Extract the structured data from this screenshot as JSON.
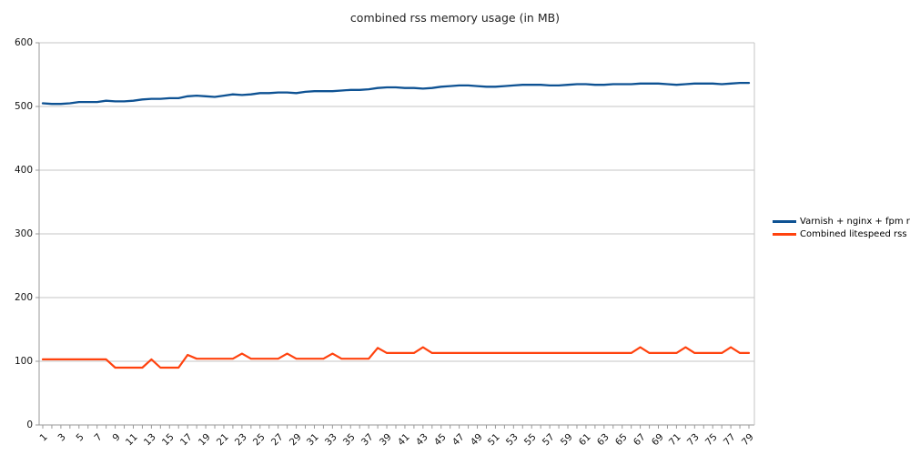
{
  "chart_data": {
    "type": "line",
    "title": "combined rss memory usage (in MB)",
    "xlabel": "",
    "ylabel": "",
    "ylim": [
      0,
      600
    ],
    "y_ticks": [
      0,
      100,
      200,
      300,
      400,
      500,
      600
    ],
    "x_label_every": 2,
    "grid": "horizontal-only",
    "legend_position": "right",
    "x": [
      1,
      2,
      3,
      4,
      5,
      6,
      7,
      8,
      9,
      10,
      11,
      12,
      13,
      14,
      15,
      16,
      17,
      18,
      19,
      20,
      21,
      22,
      23,
      24,
      25,
      26,
      27,
      28,
      29,
      30,
      31,
      32,
      33,
      34,
      35,
      36,
      37,
      38,
      39,
      40,
      41,
      42,
      43,
      44,
      45,
      46,
      47,
      48,
      49,
      50,
      51,
      52,
      53,
      54,
      55,
      56,
      57,
      58,
      59,
      60,
      61,
      62,
      63,
      64,
      65,
      66,
      67,
      68,
      69,
      70,
      71,
      72,
      73,
      74,
      75,
      76,
      77,
      78,
      79
    ],
    "series": [
      {
        "name": "Varnish + nginx + fpm rss",
        "color": "#0e5293",
        "values": [
          505,
          504,
          504,
          505,
          507,
          507,
          507,
          509,
          508,
          508,
          509,
          511,
          512,
          512,
          513,
          513,
          516,
          517,
          516,
          515,
          517,
          519,
          518,
          519,
          521,
          521,
          522,
          522,
          521,
          523,
          524,
          524,
          524,
          525,
          526,
          526,
          527,
          529,
          530,
          530,
          529,
          529,
          528,
          529,
          531,
          532,
          533,
          533,
          532,
          531,
          531,
          532,
          533,
          534,
          534,
          534,
          533,
          533,
          534,
          535,
          535,
          534,
          534,
          535,
          535,
          535,
          536,
          536,
          536,
          535,
          534,
          535,
          536,
          536,
          536,
          535,
          536,
          537,
          537
        ]
      },
      {
        "name": "Combined litespeed rss",
        "color": "#ff420e",
        "values": [
          103,
          103,
          103,
          103,
          103,
          103,
          103,
          103,
          90,
          90,
          90,
          90,
          103,
          90,
          90,
          90,
          110,
          104,
          104,
          104,
          104,
          104,
          112,
          104,
          104,
          104,
          104,
          112,
          104,
          104,
          104,
          104,
          112,
          104,
          104,
          104,
          104,
          121,
          113,
          113,
          113,
          113,
          122,
          113,
          113,
          113,
          113,
          113,
          113,
          113,
          113,
          113,
          113,
          113,
          113,
          113,
          113,
          113,
          113,
          113,
          113,
          113,
          113,
          113,
          113,
          113,
          122,
          113,
          113,
          113,
          113,
          122,
          113,
          113,
          113,
          113,
          122,
          113,
          113
        ]
      }
    ]
  },
  "colors": {
    "background": "#ffffff",
    "gridline": "#c6c6c6",
    "axis": "#999999",
    "title_text": "#222222",
    "axis_text": "#141414",
    "legend_text": "#000000"
  }
}
